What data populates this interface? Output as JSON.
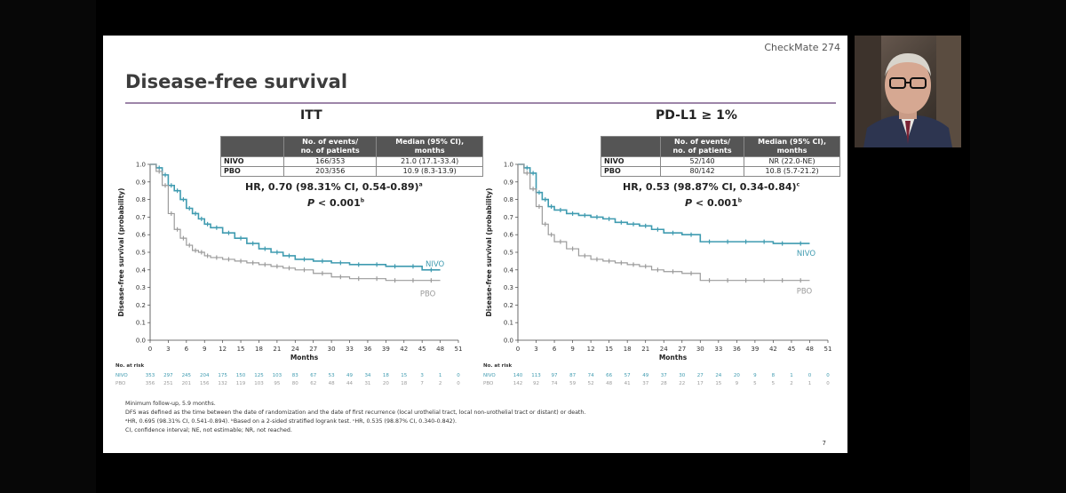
{
  "slide": {
    "brand": "CheckMate 274",
    "title": "Disease-free survival",
    "page_number": "7",
    "footnotes": [
      "Minimum follow-up, 5.9 months.",
      "DFS was defined as the time between the date of randomization and the date of first recurrence (local urothelial tract, local non-urothelial tract or distant) or death.",
      "ᵃHR, 0.695 (98.31% CI, 0.541-0.894). ᵇBased on a 2-sided stratified logrank test. ᶜHR, 0.535 (98.87% CI, 0.340-0.842).",
      "CI, confidence interval; NE, not estimable; NR, not reached."
    ]
  },
  "colors": {
    "nivo": "#3f9bb0",
    "pbo": "#9b9b9b"
  },
  "chart_data": [
    {
      "type": "line",
      "subtitle": "ITT",
      "ylabel": "Disease-free survival (probability)",
      "xlabel": "Months",
      "ylim": [
        0,
        1.0
      ],
      "xlim": [
        0,
        51
      ],
      "yticks": [
        "0.0",
        "0.1",
        "0.2",
        "0.3",
        "0.4",
        "0.5",
        "0.6",
        "0.7",
        "0.8",
        "0.9",
        "1.0"
      ],
      "xticks": [
        "0",
        "3",
        "6",
        "9",
        "12",
        "15",
        "18",
        "21",
        "24",
        "27",
        "30",
        "33",
        "36",
        "39",
        "42",
        "45",
        "48",
        "51"
      ],
      "table": {
        "headers": [
          "",
          "No. of events/\nno. of patients",
          "Median (95% CI),\nmonths"
        ],
        "rows": [
          {
            "arm": "NIVO",
            "events": "166/353",
            "median": "21.0 (17.1-33.4)"
          },
          {
            "arm": "PBO",
            "events": "203/356",
            "median": "10.9 (8.3-13.9)"
          }
        ]
      },
      "hr_text": "HR, 0.70 (98.31% CI, 0.54-0.89)",
      "hr_sup": "a",
      "p_label": "P",
      "p_text": " < 0.001",
      "p_sup": "b",
      "series": [
        {
          "name": "NIVO",
          "x": [
            0,
            1,
            2,
            3,
            4,
            5,
            6,
            7,
            8,
            9,
            10,
            12,
            14,
            16,
            18,
            20,
            22,
            24,
            27,
            30,
            33,
            36,
            39,
            42,
            45,
            48
          ],
          "y": [
            1.0,
            0.98,
            0.94,
            0.88,
            0.85,
            0.8,
            0.75,
            0.72,
            0.69,
            0.66,
            0.64,
            0.61,
            0.58,
            0.55,
            0.52,
            0.5,
            0.48,
            0.46,
            0.45,
            0.44,
            0.43,
            0.43,
            0.42,
            0.42,
            0.4,
            0.4
          ]
        },
        {
          "name": "PBO",
          "x": [
            0,
            1,
            2,
            3,
            4,
            5,
            6,
            7,
            8,
            9,
            10,
            12,
            14,
            16,
            18,
            20,
            22,
            24,
            27,
            30,
            33,
            36,
            39,
            42,
            45,
            48
          ],
          "y": [
            1.0,
            0.96,
            0.88,
            0.72,
            0.63,
            0.58,
            0.54,
            0.51,
            0.5,
            0.48,
            0.47,
            0.46,
            0.45,
            0.44,
            0.43,
            0.42,
            0.41,
            0.4,
            0.38,
            0.36,
            0.35,
            0.35,
            0.34,
            0.34,
            0.34,
            0.34
          ]
        }
      ],
      "series_labels": [
        "NIVO",
        "PBO"
      ],
      "risk_table": {
        "label": "No. at risk",
        "rows": [
          {
            "arm": "NIVO",
            "values": [
              "353",
              "297",
              "245",
              "204",
              "175",
              "150",
              "125",
              "103",
              "83",
              "67",
              "53",
              "49",
              "34",
              "18",
              "15",
              "3",
              "1",
              "0"
            ]
          },
          {
            "arm": "PBO",
            "values": [
              "356",
              "251",
              "201",
              "156",
              "132",
              "119",
              "103",
              "95",
              "80",
              "62",
              "48",
              "44",
              "31",
              "20",
              "18",
              "7",
              "2",
              "0"
            ]
          }
        ]
      }
    },
    {
      "type": "line",
      "subtitle": "PD-L1 ≥ 1%",
      "ylabel": "Disease-free survival (probability)",
      "xlabel": "Months",
      "ylim": [
        0,
        1.0
      ],
      "xlim": [
        0,
        51
      ],
      "yticks": [
        "0.0",
        "0.1",
        "0.2",
        "0.3",
        "0.4",
        "0.5",
        "0.6",
        "0.7",
        "0.8",
        "0.9",
        "1.0"
      ],
      "xticks": [
        "0",
        "3",
        "6",
        "9",
        "12",
        "15",
        "18",
        "21",
        "24",
        "27",
        "30",
        "33",
        "36",
        "39",
        "42",
        "45",
        "48",
        "51"
      ],
      "table": {
        "headers": [
          "",
          "No. of events/\nno. of patients",
          "Median (95% CI),\nmonths"
        ],
        "rows": [
          {
            "arm": "NIVO",
            "events": "52/140",
            "median": "NR (22.0-NE)"
          },
          {
            "arm": "PBO",
            "events": "80/142",
            "median": "10.8 (5.7-21.2)"
          }
        ]
      },
      "hr_text": "HR, 0.53 (98.87% CI, 0.34-0.84)",
      "hr_sup": "c",
      "p_label": "P",
      "p_text": " < 0.001",
      "p_sup": "b",
      "series": [
        {
          "name": "NIVO",
          "x": [
            0,
            1,
            2,
            3,
            4,
            5,
            6,
            8,
            10,
            12,
            14,
            16,
            18,
            20,
            22,
            24,
            27,
            30,
            33,
            36,
            39,
            42,
            45,
            48
          ],
          "y": [
            1.0,
            0.98,
            0.95,
            0.84,
            0.8,
            0.76,
            0.74,
            0.72,
            0.71,
            0.7,
            0.69,
            0.67,
            0.66,
            0.65,
            0.63,
            0.61,
            0.6,
            0.56,
            0.56,
            0.56,
            0.56,
            0.55,
            0.55,
            0.55
          ]
        },
        {
          "name": "PBO",
          "x": [
            0,
            1,
            2,
            3,
            4,
            5,
            6,
            8,
            10,
            12,
            14,
            16,
            18,
            20,
            22,
            24,
            27,
            30,
            33,
            36,
            39,
            42,
            45,
            48
          ],
          "y": [
            1.0,
            0.95,
            0.86,
            0.76,
            0.66,
            0.6,
            0.56,
            0.52,
            0.48,
            0.46,
            0.45,
            0.44,
            0.43,
            0.42,
            0.4,
            0.39,
            0.38,
            0.34,
            0.34,
            0.34,
            0.34,
            0.34,
            0.34,
            0.34
          ]
        }
      ],
      "series_labels": [
        "NIVO",
        "PBO"
      ],
      "risk_table": {
        "label": "No. at risk",
        "rows": [
          {
            "arm": "NIVO",
            "values": [
              "140",
              "113",
              "97",
              "87",
              "74",
              "66",
              "57",
              "49",
              "37",
              "30",
              "27",
              "24",
              "20",
              "9",
              "8",
              "1",
              "0",
              "0"
            ]
          },
          {
            "arm": "PBO",
            "values": [
              "142",
              "92",
              "74",
              "59",
              "52",
              "48",
              "41",
              "37",
              "28",
              "22",
              "17",
              "15",
              "9",
              "5",
              "5",
              "2",
              "1",
              "0"
            ]
          }
        ]
      }
    }
  ]
}
